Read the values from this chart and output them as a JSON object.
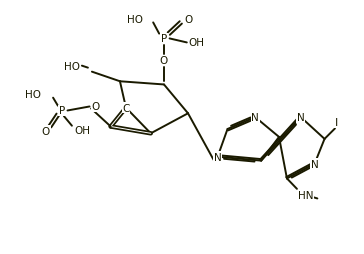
{
  "bg_color": "#ffffff",
  "line_color": "#1a1a00",
  "text_color": "#1a1a00",
  "bond_lw": 1.4,
  "font_size": 7.5,
  "figsize": [
    3.64,
    2.55
  ],
  "dpi": 100,
  "xlim": [
    0,
    9
  ],
  "ylim": [
    0,
    6.3
  ]
}
